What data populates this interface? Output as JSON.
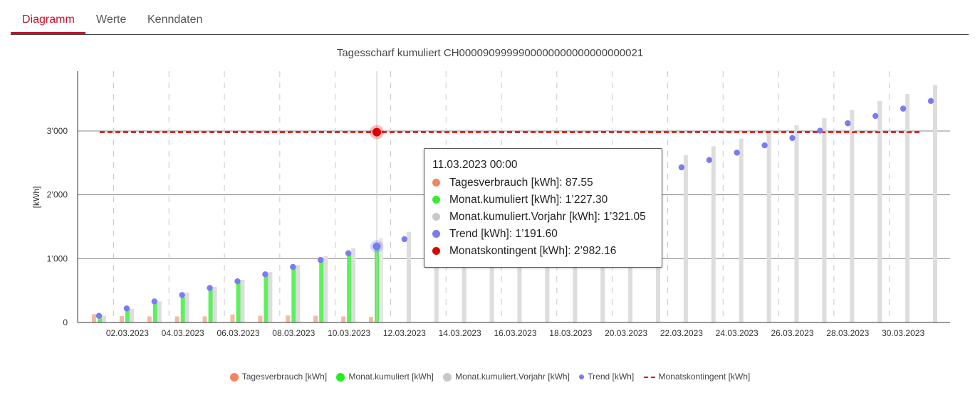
{
  "tabs": [
    {
      "label": "Diagramm",
      "active": true
    },
    {
      "label": "Werte",
      "active": false
    },
    {
      "label": "Kenndaten",
      "active": false
    }
  ],
  "colors": {
    "accent": "#c8102e",
    "tagesverbrauch": "#f4845f",
    "monat": "#33ee33",
    "vorjahr": "#cccccc",
    "trend": "#7b7bf0",
    "kontingent": "#e00000"
  },
  "chart_data": {
    "type": "bar",
    "title": "Tagesscharf kumuliert CH0000909999900000000000000000021",
    "ylabel": "[kWh]",
    "xlabel": "",
    "ylim": [
      0,
      3800
    ],
    "yticks": [
      0,
      1000,
      2000,
      3000
    ],
    "ytick_labels": [
      "0",
      "1’000",
      "2’000",
      "3’000"
    ],
    "xtick_labels": [
      "02.03.2023",
      "04.03.2023",
      "06.03.2023",
      "08.03.2023",
      "10.03.2023",
      "12.03.2023",
      "14.03.2023",
      "16.03.2023",
      "18.03.2023",
      "20.03.2023",
      "22.03.2023",
      "24.03.2023",
      "26.03.2023",
      "28.03.2023",
      "30.03.2023"
    ],
    "days": [
      "01.03.2023",
      "02.03.2023",
      "03.03.2023",
      "04.03.2023",
      "05.03.2023",
      "06.03.2023",
      "07.03.2023",
      "08.03.2023",
      "09.03.2023",
      "10.03.2023",
      "11.03.2023",
      "12.03.2023",
      "13.03.2023",
      "14.03.2023",
      "15.03.2023",
      "16.03.2023",
      "17.03.2023",
      "18.03.2023",
      "19.03.2023",
      "20.03.2023",
      "21.03.2023",
      "22.03.2023",
      "23.03.2023",
      "24.03.2023",
      "25.03.2023",
      "26.03.2023",
      "27.03.2023",
      "28.03.2023",
      "29.03.2023",
      "30.03.2023",
      "31.03.2023"
    ],
    "series": [
      {
        "name": "Tagesverbrauch [kWh]",
        "values": [
          130,
          100,
          95,
          95,
          95,
          125,
          105,
          110,
          105,
          95,
          87.55
        ]
      },
      {
        "name": "Monat.kumuliert [kWh]",
        "values": [
          110,
          210,
          305,
          400,
          520,
          640,
          750,
          860,
          965,
          1060,
          1227.3
        ]
      },
      {
        "name": "Monat.kumuliert.Vorjahr [kWh]",
        "values": [
          105,
          215,
          330,
          470,
          560,
          670,
          790,
          900,
          1040,
          1160,
          1321.05,
          1420,
          1520,
          1620,
          1720,
          1830,
          1940,
          2040,
          2160,
          2270,
          2400,
          2620,
          2760,
          2880,
          2990,
          3090,
          3200,
          3330,
          3470,
          3580,
          3720
        ]
      },
      {
        "name": "Trend [kWh]",
        "values": [
          105,
          220,
          330,
          430,
          540,
          645,
          755,
          870,
          980,
          1085,
          1191.6,
          1305,
          1420,
          1535,
          1645,
          1755,
          1865,
          1975,
          2090,
          2200,
          2315,
          2430,
          2545,
          2660,
          2775,
          2890,
          3005,
          3120,
          3235,
          3350,
          3470
        ]
      },
      {
        "name": "Monatskontingent [kWh]",
        "value": 2982.16
      }
    ],
    "grid": true,
    "legend_position": "bottom-center"
  },
  "tooltip": {
    "title": "11.03.2023 00:00",
    "rows": [
      {
        "text": "Tagesverbrauch [kWh]: 87.55",
        "color": "#f4845f"
      },
      {
        "text": "Monat.kumuliert [kWh]: 1’227.30",
        "color": "#33ee33"
      },
      {
        "text": "Monat.kumuliert.Vorjahr [kWh]: 1’321.05",
        "color": "#c8c8c8"
      },
      {
        "text": "Trend [kWh]: 1’191.60",
        "color": "#7b7bf0"
      },
      {
        "text": "Monatskontingent [kWh]: 2’982.16",
        "color": "#e00000"
      }
    ]
  },
  "legend": [
    {
      "label": "Tagesverbrauch [kWh]",
      "symbol": "circle",
      "color": "#f4845f"
    },
    {
      "label": "Monat.kumuliert [kWh]",
      "symbol": "circle",
      "color": "#22ee22"
    },
    {
      "label": "Monat.kumuliert.Vorjahr [kWh]",
      "symbol": "circle",
      "color": "#c8c8c8"
    },
    {
      "label": "Trend [kWh]",
      "symbol": "small",
      "color": "#7b7bf0"
    },
    {
      "label": "Monatskontingent [kWh]",
      "symbol": "dash",
      "color": "#e00000"
    }
  ]
}
